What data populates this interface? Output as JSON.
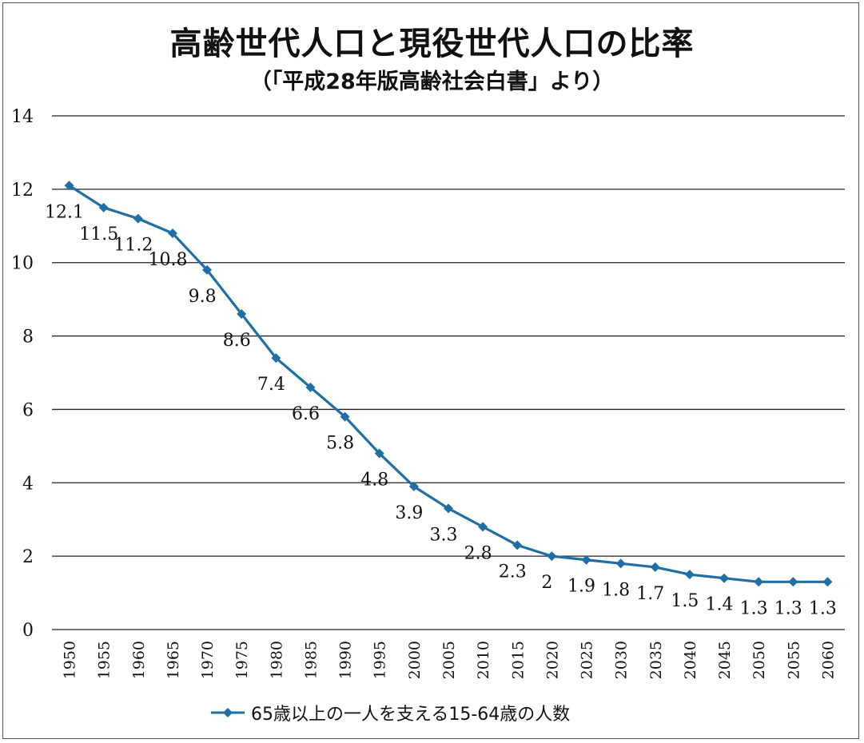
{
  "title": "高齢世代人口と現役世代人口の比率",
  "subtitle": "（「平成28年版高齢社会白書」より）",
  "chart_data": {
    "type": "line",
    "title": "高齢世代人口と現役世代人口の比率",
    "subtitle": "（「平成28年版高齢社会白書」より）",
    "xlabel": "",
    "ylabel": "",
    "ylim": [
      0,
      14
    ],
    "yticks": [
      "0",
      "2",
      "4",
      "6",
      "8",
      "10",
      "12",
      "14"
    ],
    "grid": true,
    "legend_position": "bottom",
    "categories": [
      "1950",
      "1955",
      "1960",
      "1965",
      "1970",
      "1975",
      "1980",
      "1985",
      "1990",
      "1995",
      "2000",
      "2005",
      "2010",
      "2015",
      "2020",
      "2025",
      "2030",
      "2035",
      "2040",
      "2045",
      "2050",
      "2055",
      "2060"
    ],
    "series": [
      {
        "name": "65歳以上の一人を支える15-64歳の人数",
        "color": "#1f6fa5",
        "values": [
          12.1,
          11.5,
          11.2,
          10.8,
          9.8,
          8.6,
          7.4,
          6.6,
          5.8,
          4.8,
          3.9,
          3.3,
          2.8,
          2.3,
          2.0,
          1.9,
          1.8,
          1.7,
          1.5,
          1.4,
          1.3,
          1.3,
          1.3
        ],
        "labels": [
          "12.1",
          "11.5",
          "11.2",
          "10.8",
          "9.8",
          "8.6",
          "7.4",
          "6.6",
          "5.8",
          "4.8",
          "3.9",
          "3.3",
          "2.8",
          "2.3",
          "2",
          "1.9",
          "1.8",
          "1.7",
          "1.5",
          "1.4",
          "1.3",
          "1.3",
          "1.3"
        ]
      }
    ]
  }
}
